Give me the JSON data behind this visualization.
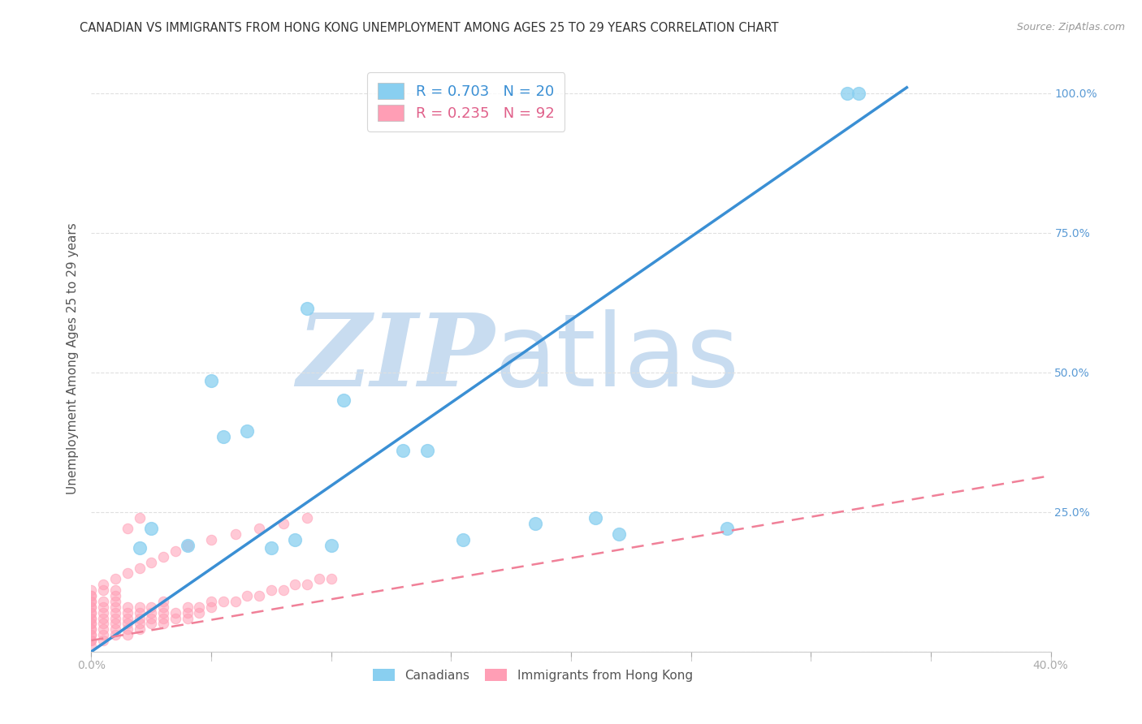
{
  "title": "CANADIAN VS IMMIGRANTS FROM HONG KONG UNEMPLOYMENT AMONG AGES 25 TO 29 YEARS CORRELATION CHART",
  "source": "Source: ZipAtlas.com",
  "ylabel": "Unemployment Among Ages 25 to 29 years",
  "xlim": [
    0.0,
    0.4
  ],
  "ylim": [
    0.0,
    1.05
  ],
  "xticks": [
    0.0,
    0.05,
    0.1,
    0.15,
    0.2,
    0.25,
    0.3,
    0.35,
    0.4
  ],
  "yticks": [
    0.0,
    0.25,
    0.5,
    0.75,
    1.0
  ],
  "xtick_labels": [
    "0.0%",
    "",
    "",
    "",
    "",
    "",
    "",
    "",
    "40.0%"
  ],
  "ytick_labels_right": [
    "",
    "25.0%",
    "50.0%",
    "75.0%",
    "100.0%"
  ],
  "canadian_color": "#89CFF0",
  "hk_color": "#FF9EB5",
  "canadian_line_color": "#3A8FD4",
  "hk_line_color": "#F08098",
  "watermark_zip_color": "#C8DCF0",
  "watermark_atlas_color": "#C8DCF0",
  "legend_R_canadian": "R = 0.703",
  "legend_N_canadian": "N = 20",
  "legend_R_hk": "R = 0.235",
  "legend_N_hk": "N = 92",
  "canadian_scatter_x": [
    0.025,
    0.05,
    0.065,
    0.09,
    0.105,
    0.13,
    0.155,
    0.185,
    0.21,
    0.265,
    0.315,
    0.02,
    0.04,
    0.055,
    0.075,
    0.085,
    0.1,
    0.14,
    0.22,
    0.32
  ],
  "canadian_scatter_y": [
    0.22,
    0.485,
    0.395,
    0.615,
    0.45,
    0.36,
    0.2,
    0.23,
    0.24,
    0.22,
    1.0,
    0.185,
    0.19,
    0.385,
    0.185,
    0.2,
    0.19,
    0.36,
    0.21,
    1.0
  ],
  "canadian_line_x": [
    0.0,
    0.34
  ],
  "canadian_line_y": [
    0.0,
    1.01
  ],
  "hk_scatter_x": [
    0.0,
    0.0,
    0.0,
    0.0,
    0.0,
    0.0,
    0.0,
    0.0,
    0.0,
    0.0,
    0.005,
    0.005,
    0.005,
    0.005,
    0.005,
    0.005,
    0.005,
    0.005,
    0.01,
    0.01,
    0.01,
    0.01,
    0.01,
    0.01,
    0.01,
    0.01,
    0.01,
    0.015,
    0.015,
    0.015,
    0.015,
    0.015,
    0.015,
    0.02,
    0.02,
    0.02,
    0.02,
    0.02,
    0.025,
    0.025,
    0.025,
    0.025,
    0.03,
    0.03,
    0.03,
    0.03,
    0.03,
    0.035,
    0.035,
    0.04,
    0.04,
    0.04,
    0.045,
    0.045,
    0.05,
    0.05,
    0.055,
    0.06,
    0.065,
    0.07,
    0.075,
    0.08,
    0.085,
    0.09,
    0.095,
    0.1,
    0.0,
    0.0,
    0.0,
    0.0,
    0.0,
    0.0,
    0.0,
    0.0,
    0.0,
    0.0,
    0.005,
    0.005,
    0.01,
    0.015,
    0.02,
    0.025,
    0.03,
    0.035,
    0.04,
    0.05,
    0.06,
    0.07,
    0.08,
    0.09,
    0.015,
    0.02
  ],
  "hk_scatter_y": [
    0.02,
    0.03,
    0.04,
    0.05,
    0.06,
    0.07,
    0.08,
    0.09,
    0.1,
    0.11,
    0.02,
    0.03,
    0.04,
    0.05,
    0.06,
    0.07,
    0.08,
    0.09,
    0.03,
    0.04,
    0.05,
    0.06,
    0.07,
    0.08,
    0.09,
    0.1,
    0.11,
    0.03,
    0.04,
    0.05,
    0.06,
    0.07,
    0.08,
    0.04,
    0.05,
    0.06,
    0.07,
    0.08,
    0.05,
    0.06,
    0.07,
    0.08,
    0.05,
    0.06,
    0.07,
    0.08,
    0.09,
    0.06,
    0.07,
    0.06,
    0.07,
    0.08,
    0.07,
    0.08,
    0.08,
    0.09,
    0.09,
    0.09,
    0.1,
    0.1,
    0.11,
    0.11,
    0.12,
    0.12,
    0.13,
    0.13,
    0.01,
    0.02,
    0.03,
    0.04,
    0.05,
    0.06,
    0.07,
    0.08,
    0.09,
    0.1,
    0.11,
    0.12,
    0.13,
    0.14,
    0.15,
    0.16,
    0.17,
    0.18,
    0.19,
    0.2,
    0.21,
    0.22,
    0.23,
    0.24,
    0.22,
    0.24
  ],
  "hk_line_x": [
    0.0,
    0.4
  ],
  "hk_line_y": [
    0.02,
    0.315
  ],
  "background_color": "#FFFFFF",
  "grid_color": "#E0E0E0"
}
